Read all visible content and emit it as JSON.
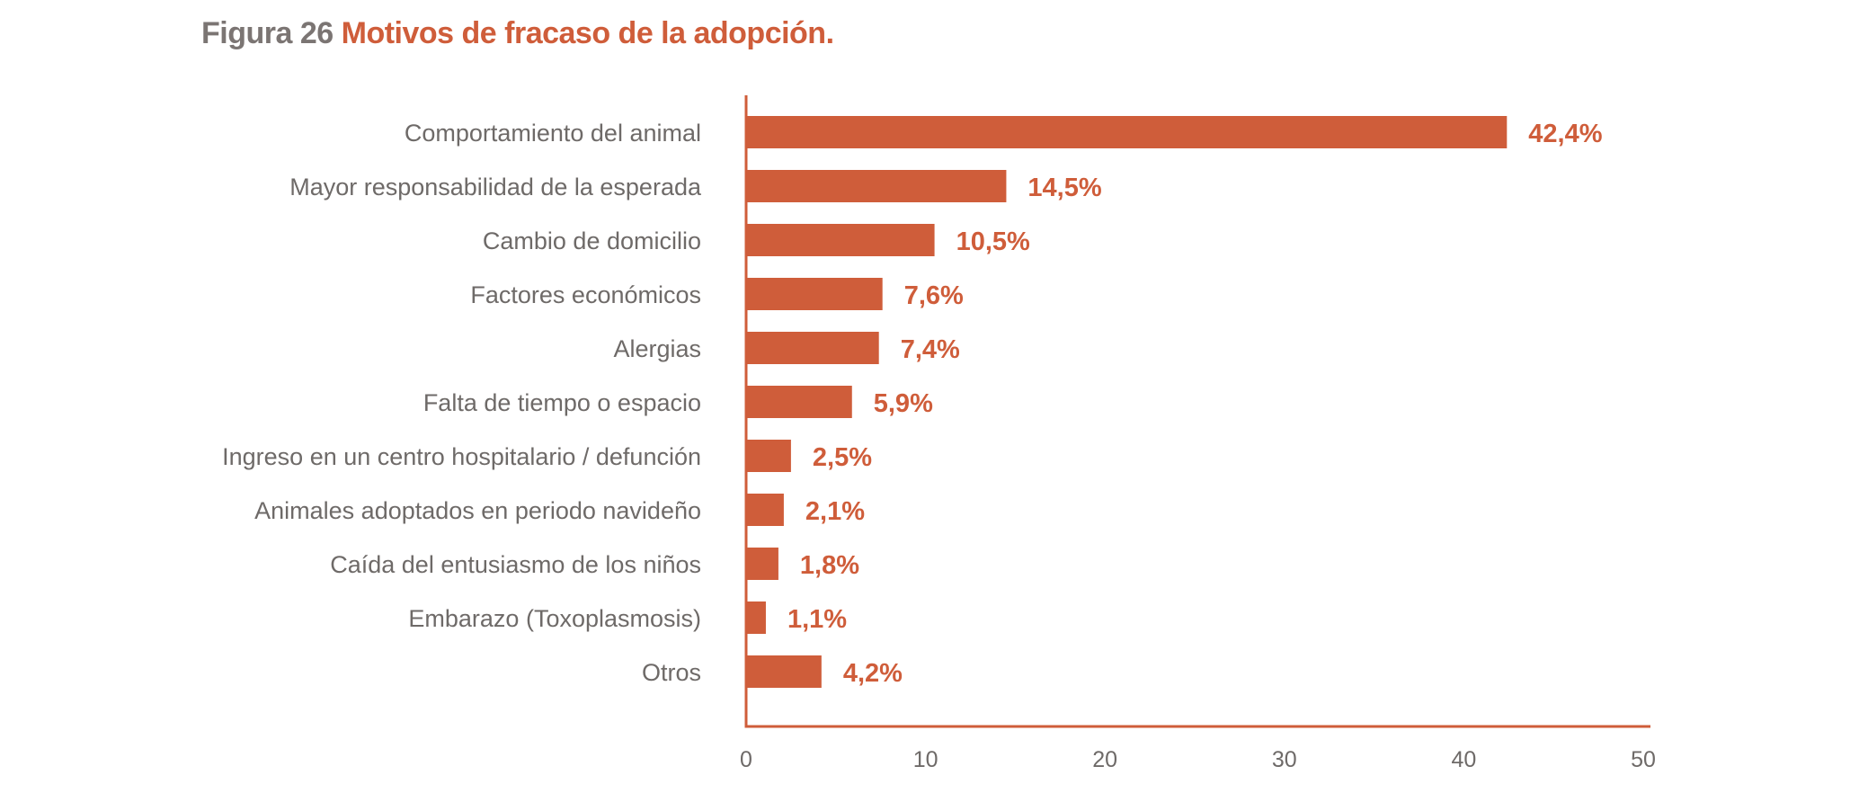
{
  "title": {
    "figure": "Figura 26",
    "text": "Motivos de fracaso de la adopción."
  },
  "colors": {
    "bar": "#cf5d3a",
    "axis": "#cf5d3a",
    "label": "#6e6a68",
    "figure": "#7b7573"
  },
  "chart_data": {
    "type": "bar",
    "orientation": "horizontal",
    "title": "Motivos de fracaso de la adopción.",
    "categories": [
      "Comportamiento del animal",
      "Mayor responsabilidad de la esperada",
      "Cambio de domicilio",
      "Factores económicos",
      "Alergias",
      "Falta de tiempo o espacio",
      "Ingreso en un centro hospitalario / defunción",
      "Animales adoptados en periodo navideño",
      "Caída del entusiasmo de los niños",
      "Embarazo (Toxoplasmosis)",
      "Otros"
    ],
    "values": [
      42.4,
      14.5,
      10.5,
      7.6,
      7.4,
      5.9,
      2.5,
      2.1,
      1.8,
      1.1,
      4.2
    ],
    "value_labels": [
      "42,4%",
      "14,5%",
      "10,5%",
      "7,6%",
      "7,4%",
      "5,9%",
      "2,5%",
      "2,1%",
      "1,8%",
      "1,1%",
      "4,2%"
    ],
    "xlim": [
      0,
      50
    ],
    "xticks": [
      0,
      10,
      20,
      30,
      40,
      50
    ],
    "xlabel": "",
    "ylabel": "",
    "grid": false
  }
}
